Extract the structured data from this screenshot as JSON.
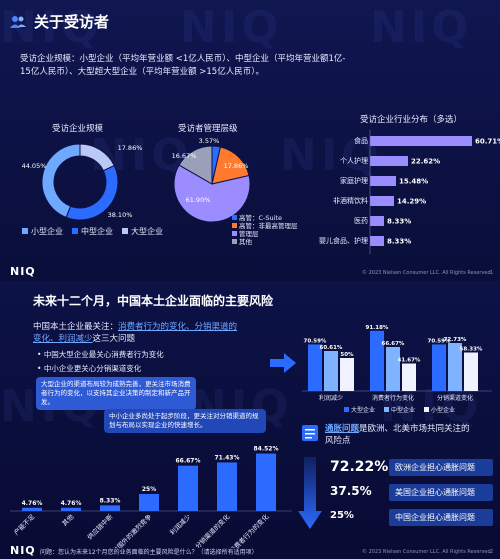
{
  "slide1": {
    "title": "关于受访者",
    "intro_line1": "受访企业规模：小型企业（平均年营业额 <1亿人民币）、中型企业（平均年营业额1亿-",
    "intro_line2": "15亿人民币）、大型超大型企业（平均年营业额 >15亿人民币）。",
    "scale_title": "受访企业规模",
    "mgmt_title": "受访者管理层级",
    "industry_title": "受访企业行业分布（多选）",
    "scale_legend": [
      "小型企业",
      "中型企业",
      "大型企业"
    ],
    "mgmt_legend": [
      "高管：C-Suite",
      "高管：非最高管理层",
      "管理层",
      "其他"
    ],
    "logo": "NIQ",
    "copyright": "© 2023 Nielsen Consumer LLC. All Rights Reserved",
    "page": "1"
  },
  "slide2": {
    "title": "未来十二个月，中国本土企业面临的主要风险",
    "concern_prefix": "中国本土企业最关注：",
    "concern_highlight1": "消费者行为的变化、分销渠道的",
    "concern_highlight2": "变化、利润减少",
    "concern_suffix": "这三大问题",
    "bullet1": "中国大型企业最关心消费者行为变化",
    "bullet2": "中小企业更关心分销渠道变化",
    "note1": "大型企业的渠道布局较为成熟完善，更关注市场消费者行为的变化，以支持其企业决策的制定和新产品开发。",
    "note2": "中小企业多尚处于起步阶段，更关注对分销渠道的规划与布局以实现企业的快速增长。",
    "inflation_highlight": "通胀问题",
    "inflation_text1": "是欧洲、北美市场共同关注的",
    "inflation_text2": "风险点",
    "inflation_items": [
      {
        "pct": "72.22%",
        "label": "欧洲企业担心通胀问题"
      },
      {
        "pct": "37.5%",
        "label": "美国企业担心通胀问题"
      },
      {
        "pct": "25%",
        "label": "中国企业担心通胀问题"
      }
    ],
    "question": "问题：您认为未来12个月您的业务面临的主要风险是什么？（请选择所有适用项）",
    "logo": "NIQ",
    "copyright": "© 2023 Nielsen Consumer LLC. All Rights Reserved",
    "page": "2"
  },
  "colors": {
    "bg": "#0b0f3d",
    "accent_blue": "#2b6bff",
    "light_blue": "#7fb2ff",
    "purple": "#9b8cff",
    "orange": "#ff7a2e",
    "white": "#ffffff",
    "grey": "#8a8fb0"
  },
  "chart_data": [
    {
      "type": "pie",
      "title": "受访企业规模",
      "style": "donut",
      "labels": [
        "小型企业",
        "中型企业",
        "大型企业"
      ],
      "values": [
        44.05,
        38.1,
        17.86
      ],
      "value_labels": [
        "44.05%",
        "38.10%",
        "17.86%"
      ],
      "colors": [
        "#6fa8ff",
        "#2b6bff",
        "#b9c8f5"
      ]
    },
    {
      "type": "pie",
      "title": "受访者管理层级",
      "labels": [
        "高管：C-Suite",
        "高管：非最高管理层",
        "管理层",
        "其他"
      ],
      "values": [
        3.57,
        17.86,
        61.9,
        16.67
      ],
      "value_labels": [
        "3.57%",
        "17.86%",
        "61.90%",
        "16.67%"
      ],
      "colors": [
        "#2b6bff",
        "#ff7a2e",
        "#9b8cff",
        "#9aa0b8"
      ]
    },
    {
      "type": "bar",
      "orientation": "horizontal",
      "title": "受访企业行业分布（多选）",
      "categories": [
        "食品",
        "个人护理",
        "家庭护理",
        "非酒精饮料",
        "医药",
        "婴儿食品、护理"
      ],
      "values": [
        60.71,
        22.62,
        15.48,
        14.29,
        8.33,
        8.33
      ],
      "value_labels": [
        "60.71%",
        "22.62%",
        "15.48%",
        "14.29%",
        "8.33%",
        "8.33%"
      ],
      "color": "#9b8cff"
    },
    {
      "type": "bar",
      "title": "",
      "categories": [
        "利润减少",
        "消费者行为变化",
        "分销渠道变化"
      ],
      "series": [
        {
          "name": "大型企业",
          "values": [
            70.59,
            91.18,
            70.59
          ],
          "labels": [
            "70.59%",
            "91.18%",
            "70.59%"
          ],
          "color": "#2b6bff"
        },
        {
          "name": "中型企业",
          "values": [
            60.61,
            66.67,
            72.73
          ],
          "labels": [
            "60.61%",
            "66.67%",
            "72.73%"
          ],
          "color": "#7fb2ff"
        },
        {
          "name": "小型企业",
          "values": [
            50,
            41.67,
            58.33
          ],
          "labels": [
            "50%",
            "41.67%",
            "58.33%"
          ],
          "color": "#f0f2ff"
        }
      ],
      "ylim": [
        0,
        100
      ],
      "legend": "bottom"
    },
    {
      "type": "bar",
      "title": "",
      "categories": [
        "产能不足",
        "其他",
        "供应链中断",
        "来自国外的激烈竞争",
        "利润减少",
        "分销渠道的变化",
        "消费者行为的变化"
      ],
      "values": [
        4.76,
        4.76,
        8.33,
        25,
        66.67,
        71.43,
        84.52
      ],
      "value_labels": [
        "4.76%",
        "4.76%",
        "8.33%",
        "25%",
        "66.67%",
        "71.43%",
        "84.52%"
      ],
      "ylim": [
        0,
        100
      ],
      "color": "#2b6bff"
    }
  ]
}
